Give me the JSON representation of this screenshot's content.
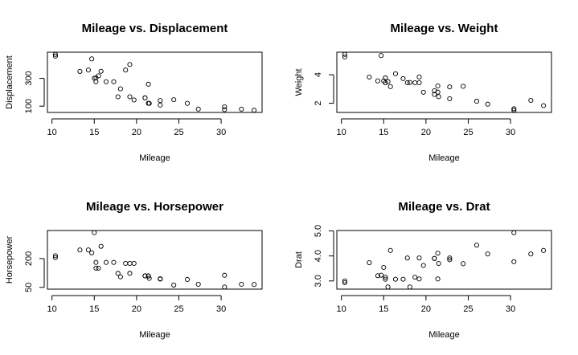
{
  "chart_data": [
    {
      "type": "scatter",
      "title": "Mileage vs. Displacement",
      "xlabel": "Mileage",
      "ylabel": "Displacement",
      "xticks": [
        10,
        15,
        20,
        25,
        30
      ],
      "yticks": [
        100,
        300
      ],
      "xlim": [
        10.4,
        33.9
      ],
      "ylim": [
        71.1,
        472
      ],
      "x": [
        21.0,
        21.0,
        22.8,
        21.4,
        18.7,
        18.1,
        14.3,
        24.4,
        22.8,
        19.2,
        17.8,
        16.4,
        17.3,
        15.2,
        10.4,
        10.4,
        14.7,
        32.4,
        30.4,
        33.9,
        21.5,
        15.5,
        15.2,
        13.3,
        19.2,
        27.3,
        26.0,
        30.4,
        15.8,
        19.7,
        15.0,
        21.4
      ],
      "y": [
        160,
        160,
        108,
        258,
        360,
        225,
        360,
        146.7,
        140.8,
        167.6,
        167.6,
        275.8,
        275.8,
        275.8,
        472,
        460,
        440,
        78.7,
        75.7,
        71.1,
        120.1,
        318,
        304,
        350,
        400,
        79,
        120.3,
        95.1,
        351,
        145,
        301,
        121
      ]
    },
    {
      "type": "scatter",
      "title": "Mileage vs. Weight",
      "xlabel": "Mileage",
      "ylabel": "Weight",
      "xticks": [
        10,
        15,
        20,
        25,
        30
      ],
      "yticks": [
        2,
        4
      ],
      "xlim": [
        10.4,
        33.9
      ],
      "ylim": [
        1.513,
        5.424
      ],
      "x": [
        21.0,
        21.0,
        22.8,
        21.4,
        18.7,
        18.1,
        14.3,
        24.4,
        22.8,
        19.2,
        17.8,
        16.4,
        17.3,
        15.2,
        10.4,
        10.4,
        14.7,
        32.4,
        30.4,
        33.9,
        21.5,
        15.5,
        15.2,
        13.3,
        19.2,
        27.3,
        26.0,
        30.4,
        15.8,
        19.7,
        15.0,
        21.4
      ],
      "y": [
        2.62,
        2.875,
        2.32,
        3.215,
        3.44,
        3.46,
        3.57,
        3.19,
        3.15,
        3.44,
        3.44,
        4.07,
        3.73,
        3.78,
        5.25,
        5.424,
        5.345,
        2.2,
        1.615,
        1.835,
        2.465,
        3.52,
        3.435,
        3.84,
        3.845,
        1.935,
        2.14,
        1.513,
        3.17,
        2.77,
        3.57,
        2.78
      ]
    },
    {
      "type": "scatter",
      "title": "Mileage vs. Horsepower",
      "xlabel": "Mileage",
      "ylabel": "Horsepower",
      "xticks": [
        10,
        15,
        20,
        25,
        30
      ],
      "yticks": [
        50,
        200
      ],
      "xlim": [
        10.4,
        33.9
      ],
      "ylim": [
        52,
        335
      ],
      "x": [
        21.0,
        21.0,
        22.8,
        21.4,
        18.7,
        18.1,
        14.3,
        24.4,
        22.8,
        19.2,
        17.8,
        16.4,
        17.3,
        15.2,
        10.4,
        10.4,
        14.7,
        32.4,
        30.4,
        33.9,
        21.5,
        15.5,
        15.2,
        13.3,
        19.2,
        27.3,
        26.0,
        30.4,
        15.8,
        19.7,
        15.0,
        21.4
      ],
      "y": [
        110,
        110,
        93,
        110,
        175,
        105,
        245,
        62,
        95,
        123,
        123,
        180,
        180,
        180,
        205,
        215,
        230,
        66,
        52,
        65,
        97,
        150,
        150,
        245,
        175,
        66,
        91,
        113,
        264,
        175,
        335,
        109
      ]
    },
    {
      "type": "scatter",
      "title": "Mileage vs. Drat",
      "xlabel": "Mileage",
      "ylabel": "Drat",
      "xticks": [
        10,
        15,
        20,
        25,
        30
      ],
      "yticks": [
        3.0,
        4.0,
        5.0
      ],
      "ytick_labels": [
        "3.0",
        "4.0",
        "5.0"
      ],
      "xlim": [
        10.4,
        33.9
      ],
      "ylim": [
        2.76,
        4.93
      ],
      "x": [
        21.0,
        21.0,
        22.8,
        21.4,
        18.7,
        18.1,
        14.3,
        24.4,
        22.8,
        19.2,
        17.8,
        16.4,
        17.3,
        15.2,
        10.4,
        10.4,
        14.7,
        32.4,
        30.4,
        33.9,
        21.5,
        15.5,
        15.2,
        13.3,
        19.2,
        27.3,
        26.0,
        30.4,
        15.8,
        19.7,
        15.0,
        21.4
      ],
      "y": [
        3.9,
        3.9,
        3.85,
        3.08,
        3.15,
        2.76,
        3.21,
        3.69,
        3.92,
        3.92,
        3.92,
        3.07,
        3.07,
        3.07,
        2.93,
        3.0,
        3.23,
        4.08,
        4.93,
        4.22,
        3.7,
        2.76,
        3.15,
        3.73,
        3.08,
        4.08,
        4.43,
        3.77,
        4.22,
        3.62,
        3.54,
        4.11
      ]
    }
  ]
}
